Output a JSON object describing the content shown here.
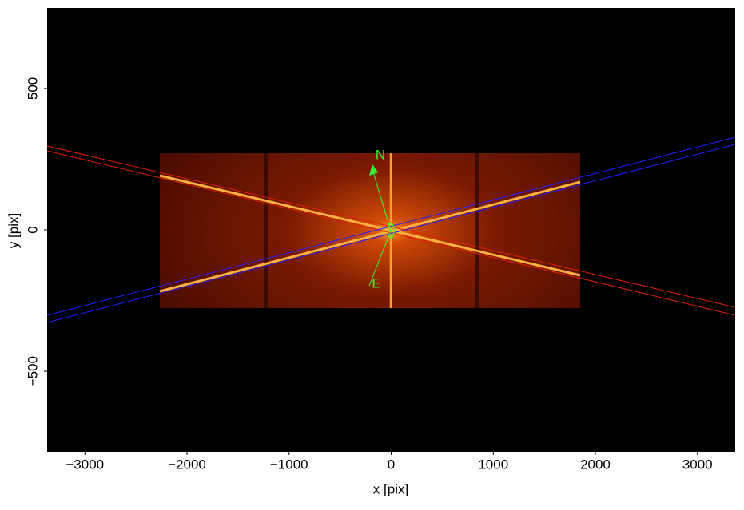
{
  "chart_data": {
    "type": "image",
    "x_label": "x [pix]",
    "y_label": "y [pix]",
    "xlim": [
      -3370,
      3370
    ],
    "ylim": [
      -785,
      785
    ],
    "xticks": [
      {
        "value": -3000,
        "label": "−3000"
      },
      {
        "value": -2000,
        "label": "−2000"
      },
      {
        "value": -1000,
        "label": "−1000"
      },
      0,
      1000,
      2000,
      3000
    ],
    "yticks": [
      {
        "value": -500,
        "label": "−500"
      },
      0,
      500
    ],
    "annotations": [
      "N",
      "E"
    ]
  }
}
